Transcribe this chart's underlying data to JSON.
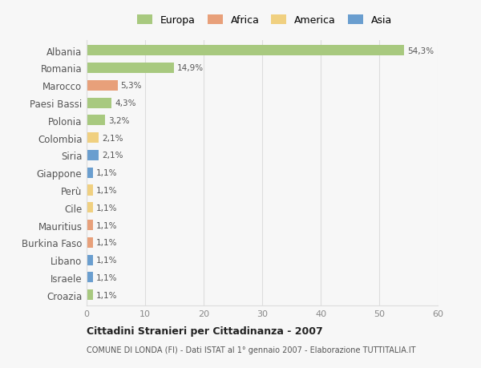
{
  "categories": [
    "Albania",
    "Romania",
    "Marocco",
    "Paesi Bassi",
    "Polonia",
    "Colombia",
    "Siria",
    "Giappone",
    "Perù",
    "Cile",
    "Mauritius",
    "Burkina Faso",
    "Libano",
    "Israele",
    "Croazia"
  ],
  "values": [
    54.3,
    14.9,
    5.3,
    4.3,
    3.2,
    2.1,
    2.1,
    1.1,
    1.1,
    1.1,
    1.1,
    1.1,
    1.1,
    1.1,
    1.1
  ],
  "labels": [
    "54,3%",
    "14,9%",
    "5,3%",
    "4,3%",
    "3,2%",
    "2,1%",
    "2,1%",
    "1,1%",
    "1,1%",
    "1,1%",
    "1,1%",
    "1,1%",
    "1,1%",
    "1,1%",
    "1,1%"
  ],
  "colors": [
    "#a8c97f",
    "#a8c97f",
    "#e8a07a",
    "#a8c97f",
    "#a8c97f",
    "#f0d080",
    "#6a9ecf",
    "#6a9ecf",
    "#f0d080",
    "#f0d080",
    "#e8a07a",
    "#e8a07a",
    "#6a9ecf",
    "#6a9ecf",
    "#a8c97f"
  ],
  "legend_labels": [
    "Europa",
    "Africa",
    "America",
    "Asia"
  ],
  "legend_colors": [
    "#a8c97f",
    "#e8a07a",
    "#f0d080",
    "#6a9ecf"
  ],
  "title": "Cittadini Stranieri per Cittadinanza - 2007",
  "subtitle": "COMUNE DI LONDA (FI) - Dati ISTAT al 1° gennaio 2007 - Elaborazione TUTTITALIA.IT",
  "xlim": [
    0,
    60
  ],
  "xticks": [
    0,
    10,
    20,
    30,
    40,
    50,
    60
  ],
  "background_color": "#f7f7f7",
  "grid_color": "#dddddd",
  "bar_height": 0.6
}
